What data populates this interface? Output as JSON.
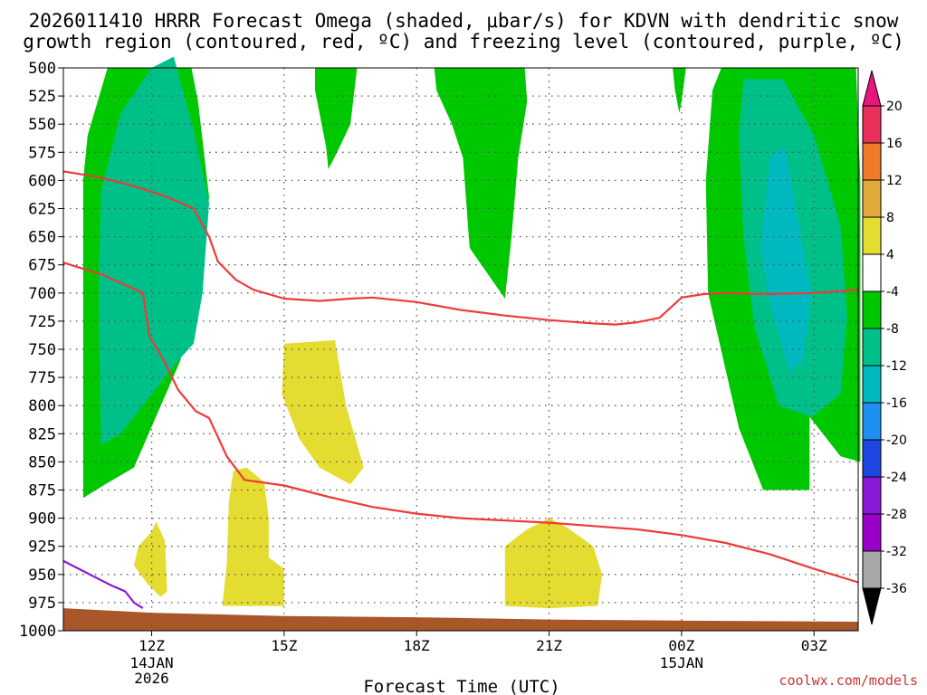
{
  "chart_data": {
    "type": "time-height contour",
    "title_line1": "2026011410 HRRR Forecast Omega (shaded, μbar/s) for KDVN with dendritic snow",
    "title_line2": "growth region (contoured, red, ºC) and freezing level (contoured, purple, ºC)",
    "xlabel": "Forecast Time (UTC)",
    "credit": "coolwx.com/models",
    "x_hours": [
      10,
      28
    ],
    "x_ticks": [
      {
        "hour": 12,
        "label": "12Z",
        "sub1": "14JAN",
        "sub2": "2026"
      },
      {
        "hour": 15,
        "label": "15Z",
        "sub1": "",
        "sub2": ""
      },
      {
        "hour": 18,
        "label": "18Z",
        "sub1": "",
        "sub2": ""
      },
      {
        "hour": 21,
        "label": "21Z",
        "sub1": "",
        "sub2": ""
      },
      {
        "hour": 24,
        "label": "00Z",
        "sub1": "15JAN",
        "sub2": ""
      },
      {
        "hour": 27,
        "label": "03Z",
        "sub1": "",
        "sub2": ""
      }
    ],
    "y_levels": [
      500,
      525,
      550,
      575,
      600,
      625,
      650,
      675,
      700,
      725,
      750,
      775,
      800,
      825,
      850,
      875,
      900,
      925,
      950,
      975,
      1000
    ],
    "colorbar": {
      "labels": [
        "20",
        "16",
        "12",
        "8",
        "4",
        "-4",
        "-8",
        "-12",
        "-16",
        "-20",
        "-24",
        "-28",
        "-32",
        "-36"
      ],
      "colors": [
        "#e8305a",
        "#ee7a2a",
        "#e3a93a",
        "#e4dc30",
        "#ffffff",
        "#00c800",
        "#00c08a",
        "#00b8c0",
        "#1e90f0",
        "#1e46e0",
        "#8a18d8",
        "#9b00c8",
        "#a8a8a8"
      ],
      "top_arrow_color": "#e8157e",
      "bottom_arrow_color": "#000000"
    },
    "omega_regions": [
      {
        "name": "west-green",
        "color": "#00c800",
        "points": [
          [
            10.45,
            1000
          ],
          [
            10.45,
            882
          ],
          [
            10.95,
            870
          ],
          [
            11.6,
            855
          ],
          [
            12.65,
            760
          ],
          [
            12.9,
            700
          ],
          [
            13.1,
            665
          ],
          [
            13.3,
            615
          ],
          [
            13.05,
            530
          ],
          [
            12.9,
            500
          ],
          [
            11.0,
            500
          ],
          [
            10.55,
            560
          ],
          [
            10.45,
            600
          ]
        ]
      },
      {
        "name": "west-teal",
        "color": "#00c08a",
        "points": [
          [
            10.85,
            835
          ],
          [
            10.8,
            700
          ],
          [
            10.85,
            610
          ],
          [
            11.3,
            540
          ],
          [
            12.0,
            500
          ],
          [
            12.5,
            490
          ],
          [
            12.95,
            555
          ],
          [
            13.3,
            620
          ],
          [
            13.15,
            700
          ],
          [
            12.95,
            745
          ],
          [
            12.6,
            760
          ],
          [
            11.8,
            800
          ],
          [
            11.3,
            825
          ]
        ]
      },
      {
        "name": "mid-green-1",
        "color": "#00c800",
        "points": [
          [
            15.7,
            500
          ],
          [
            16.65,
            500
          ],
          [
            16.5,
            550
          ],
          [
            16.2,
            575
          ],
          [
            16.0,
            590
          ],
          [
            15.95,
            570
          ],
          [
            15.7,
            520
          ]
        ]
      },
      {
        "name": "mid-green-2",
        "color": "#00c800",
        "points": [
          [
            18.4,
            500
          ],
          [
            20.45,
            500
          ],
          [
            20.5,
            530
          ],
          [
            20.3,
            580
          ],
          [
            20.15,
            650
          ],
          [
            20.0,
            705
          ],
          [
            19.2,
            660
          ],
          [
            19.05,
            580
          ],
          [
            18.8,
            550
          ],
          [
            18.45,
            520
          ]
        ]
      },
      {
        "name": "mid-green-3",
        "color": "#00c800",
        "points": [
          [
            23.8,
            500
          ],
          [
            24.1,
            500
          ],
          [
            24.0,
            530
          ],
          [
            23.95,
            540
          ],
          [
            23.85,
            520
          ]
        ]
      },
      {
        "name": "east-green",
        "color": "#00c800",
        "points": [
          [
            27.95,
            500
          ],
          [
            28.05,
            600
          ],
          [
            28.05,
            850
          ],
          [
            27.6,
            845
          ],
          [
            26.9,
            810
          ],
          [
            26.9,
            875
          ],
          [
            25.85,
            875
          ],
          [
            25.3,
            820
          ],
          [
            24.6,
            700
          ],
          [
            24.55,
            600
          ],
          [
            24.7,
            520
          ],
          [
            24.9,
            500
          ]
        ]
      },
      {
        "name": "east-teal",
        "color": "#00c08a",
        "points": [
          [
            25.4,
            510
          ],
          [
            26.3,
            510
          ],
          [
            27.0,
            560
          ],
          [
            27.6,
            640
          ],
          [
            27.75,
            720
          ],
          [
            27.6,
            790
          ],
          [
            26.95,
            810
          ],
          [
            26.2,
            800
          ],
          [
            25.65,
            730
          ],
          [
            25.4,
            650
          ],
          [
            25.3,
            560
          ]
        ]
      },
      {
        "name": "east-cyan",
        "color": "#00b8c0",
        "points": [
          [
            26.0,
            580
          ],
          [
            26.35,
            570
          ],
          [
            26.6,
            630
          ],
          [
            26.95,
            700
          ],
          [
            26.75,
            760
          ],
          [
            26.45,
            770
          ],
          [
            26.2,
            735
          ],
          [
            25.95,
            700
          ],
          [
            25.8,
            660
          ]
        ]
      },
      {
        "name": "yellow-1",
        "color": "#e4dc30",
        "points": [
          [
            15.0,
            745
          ],
          [
            16.15,
            742
          ],
          [
            16.4,
            800
          ],
          [
            16.8,
            855
          ],
          [
            16.5,
            870
          ],
          [
            15.8,
            855
          ],
          [
            15.35,
            830
          ],
          [
            14.95,
            790
          ]
        ]
      },
      {
        "name": "yellow-2",
        "color": "#e4dc30",
        "points": [
          [
            13.85,
            858
          ],
          [
            14.15,
            855
          ],
          [
            14.55,
            868
          ],
          [
            14.65,
            900
          ],
          [
            14.65,
            935
          ],
          [
            15.0,
            945
          ],
          [
            15.0,
            978
          ],
          [
            13.6,
            978
          ],
          [
            13.7,
            940
          ],
          [
            13.75,
            885
          ]
        ]
      },
      {
        "name": "yellow-3",
        "color": "#e4dc30",
        "points": [
          [
            12.0,
            912
          ],
          [
            12.1,
            903
          ],
          [
            12.3,
            920
          ],
          [
            12.35,
            965
          ],
          [
            12.2,
            970
          ],
          [
            11.9,
            958
          ],
          [
            11.6,
            942
          ],
          [
            11.7,
            925
          ]
        ]
      },
      {
        "name": "yellow-4",
        "color": "#e4dc30",
        "points": [
          [
            21.0,
            900
          ],
          [
            21.4,
            908
          ],
          [
            22.0,
            925
          ],
          [
            22.2,
            950
          ],
          [
            22.1,
            978
          ],
          [
            21.0,
            980
          ],
          [
            20.0,
            978
          ],
          [
            20.0,
            925
          ],
          [
            20.5,
            910
          ]
        ]
      }
    ],
    "dgz_lines": [
      {
        "name": "dgz-upper",
        "color": "#ee3a3a",
        "points": [
          [
            10,
            592
          ],
          [
            10.8,
            597
          ],
          [
            11.6,
            605
          ],
          [
            12.3,
            614
          ],
          [
            12.95,
            625
          ],
          [
            13.3,
            650
          ],
          [
            13.5,
            672
          ],
          [
            13.9,
            688
          ],
          [
            14.3,
            697
          ],
          [
            15.0,
            705
          ],
          [
            15.8,
            707
          ],
          [
            16.5,
            705
          ],
          [
            17.0,
            704
          ],
          [
            18.0,
            708
          ],
          [
            19.0,
            715
          ],
          [
            20.0,
            720
          ],
          [
            21.0,
            724
          ],
          [
            22.0,
            727
          ],
          [
            22.5,
            728
          ],
          [
            23.0,
            726
          ],
          [
            23.5,
            722
          ],
          [
            24.0,
            704
          ],
          [
            24.5,
            701
          ],
          [
            25.0,
            700
          ],
          [
            26.0,
            701
          ],
          [
            27.0,
            700
          ],
          [
            28.0,
            697
          ]
        ]
      },
      {
        "name": "dgz-lower",
        "color": "#ee3a3a",
        "points": [
          [
            10,
            673
          ],
          [
            10.9,
            684
          ],
          [
            11.8,
            700
          ],
          [
            11.95,
            738
          ],
          [
            12.3,
            762
          ],
          [
            12.6,
            786
          ],
          [
            13.0,
            805
          ],
          [
            13.3,
            811
          ],
          [
            13.7,
            845
          ],
          [
            14.1,
            866
          ],
          [
            15.0,
            871
          ],
          [
            16.0,
            881
          ],
          [
            17.0,
            890
          ],
          [
            18.0,
            896
          ],
          [
            19.0,
            900
          ],
          [
            20.0,
            902
          ],
          [
            21.0,
            904
          ],
          [
            22.0,
            907
          ],
          [
            23.0,
            910
          ],
          [
            24.0,
            915
          ],
          [
            25.0,
            922
          ],
          [
            26.0,
            932
          ],
          [
            27.0,
            945
          ],
          [
            28.0,
            957
          ]
        ]
      }
    ],
    "freezing_line": {
      "color": "#8b1ad0",
      "points": [
        [
          10,
          938
        ],
        [
          10.9,
          956
        ],
        [
          11.1,
          960
        ],
        [
          11.4,
          965
        ],
        [
          11.6,
          975
        ],
        [
          11.8,
          980
        ]
      ]
    },
    "terrain": {
      "color": "#a9562a",
      "surface": [
        [
          10,
          980
        ],
        [
          12,
          984
        ],
        [
          15,
          987
        ],
        [
          18,
          988
        ],
        [
          21,
          990
        ],
        [
          24,
          991
        ],
        [
          28,
          992
        ]
      ]
    }
  }
}
